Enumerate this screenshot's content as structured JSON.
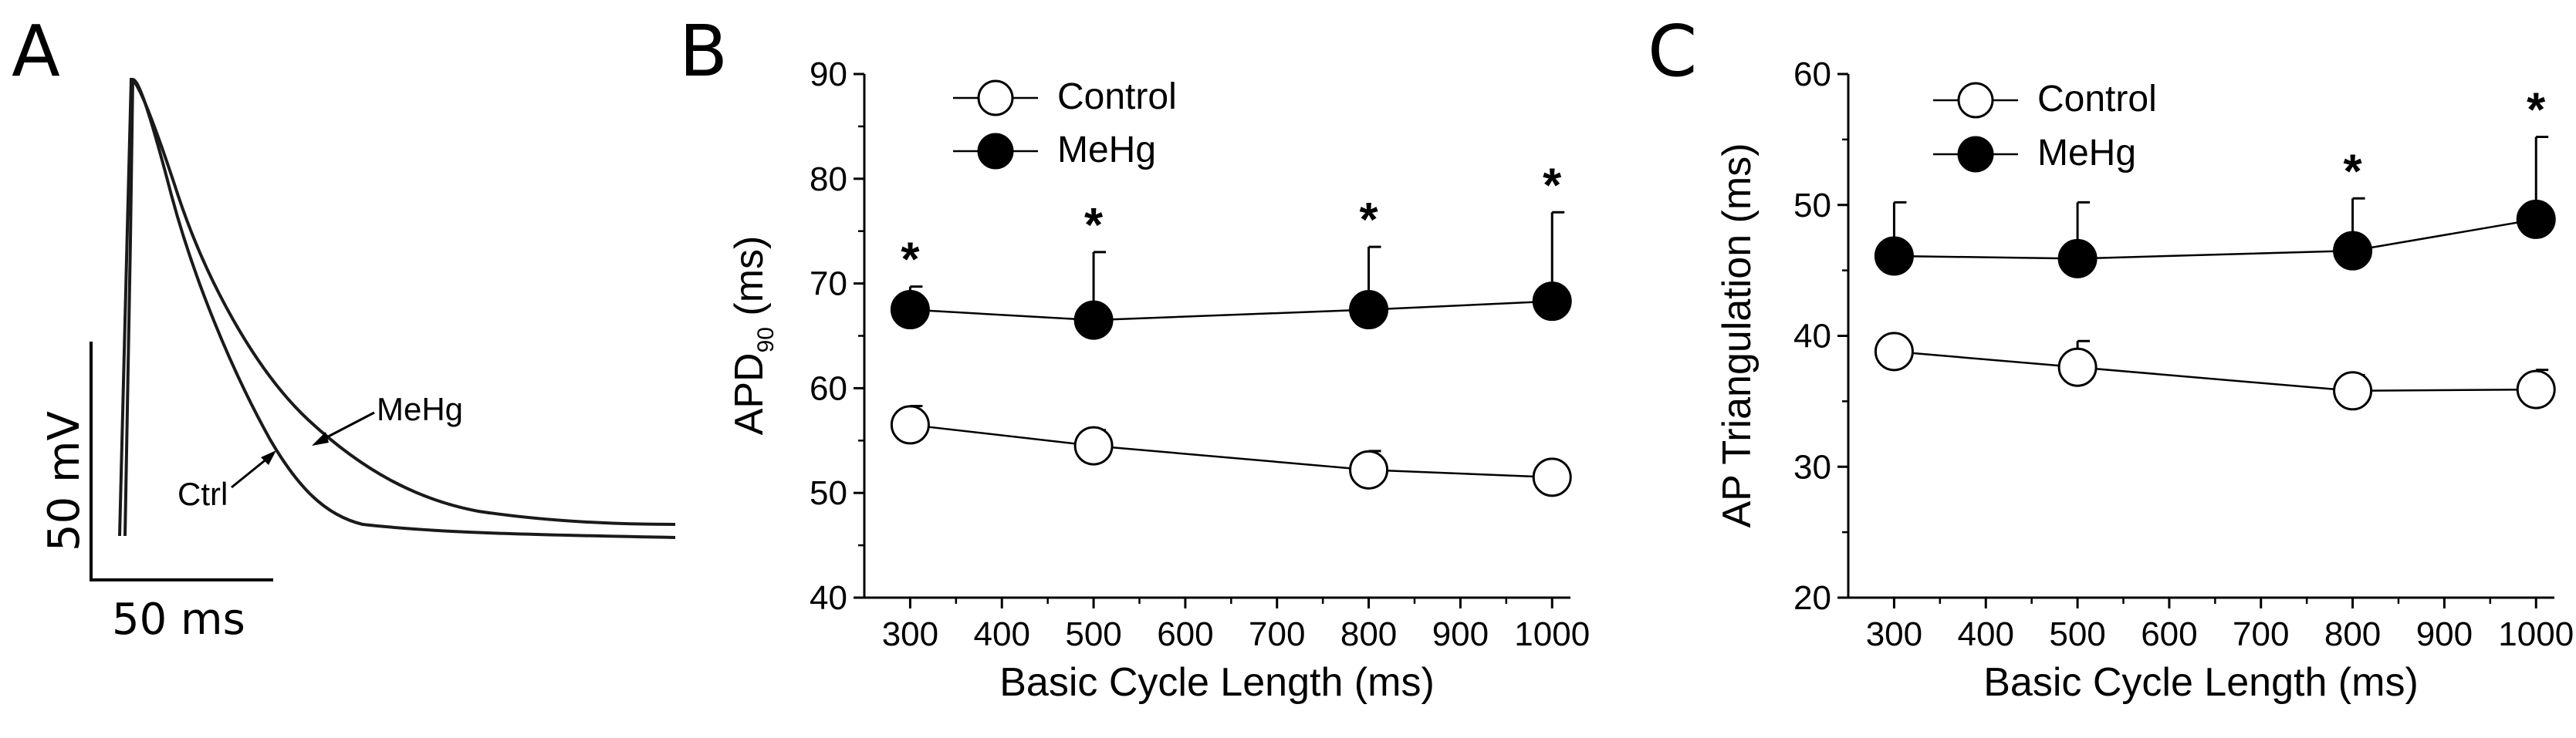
{
  "panels": {
    "a": {
      "letter": "A"
    },
    "b": {
      "letter": "B"
    },
    "c": {
      "letter": "C"
    }
  },
  "chart_data": [
    {
      "panel": "A",
      "type": "line",
      "title": "",
      "traces": [
        {
          "name": "MeHg",
          "label": "MeHg"
        },
        {
          "name": "Ctrl",
          "label": "Ctrl"
        }
      ],
      "scale_bars": {
        "voltage": "50 mV",
        "time": "50 ms"
      }
    },
    {
      "panel": "B",
      "type": "scatter",
      "title": "",
      "xlabel": "Basic Cycle Length (ms)",
      "ylabel_main": "APD",
      "ylabel_sub": "90",
      "ylabel_unit": " (ms)",
      "xlim": [
        250,
        1020
      ],
      "ylim": [
        40,
        90
      ],
      "xticks": [
        300,
        400,
        500,
        600,
        700,
        800,
        900,
        1000
      ],
      "yticks": [
        40,
        50,
        60,
        70,
        80,
        90
      ],
      "series": [
        {
          "name": "Control",
          "x": [
            300,
            500,
            800,
            1000
          ],
          "y": [
            56.5,
            54.5,
            52.2,
            51.5
          ],
          "err": [
            1.8,
            1.5,
            1.8,
            1.0
          ],
          "filled": false
        },
        {
          "name": "MeHg",
          "x": [
            300,
            500,
            800,
            1000
          ],
          "y": [
            67.5,
            66.5,
            67.5,
            68.3
          ],
          "err": [
            2.2,
            6.5,
            6.0,
            8.5
          ],
          "filled": true
        }
      ],
      "significance_marker": "*",
      "significant_x": [
        300,
        500,
        800,
        1000
      ]
    },
    {
      "panel": "C",
      "type": "scatter",
      "title": "",
      "xlabel": "Basic Cycle Length (ms)",
      "ylabel": "AP Triangulation (ms)",
      "xlim": [
        250,
        1020
      ],
      "ylim": [
        20,
        60
      ],
      "xticks": [
        300,
        400,
        500,
        600,
        700,
        800,
        900,
        1000
      ],
      "yticks": [
        20,
        30,
        40,
        50,
        60
      ],
      "series": [
        {
          "name": "Control",
          "x": [
            300,
            500,
            800,
            1000
          ],
          "y": [
            38.8,
            37.6,
            35.8,
            35.9
          ],
          "err": [
            1.0,
            2.0,
            1.2,
            1.5
          ],
          "filled": false
        },
        {
          "name": "MeHg",
          "x": [
            300,
            500,
            800,
            1000
          ],
          "y": [
            46.1,
            45.9,
            46.5,
            48.9
          ],
          "err": [
            4.1,
            4.3,
            4.0,
            6.3
          ],
          "filled": true
        }
      ],
      "significance_marker": "*",
      "significant_x": [
        800,
        1000
      ]
    }
  ]
}
